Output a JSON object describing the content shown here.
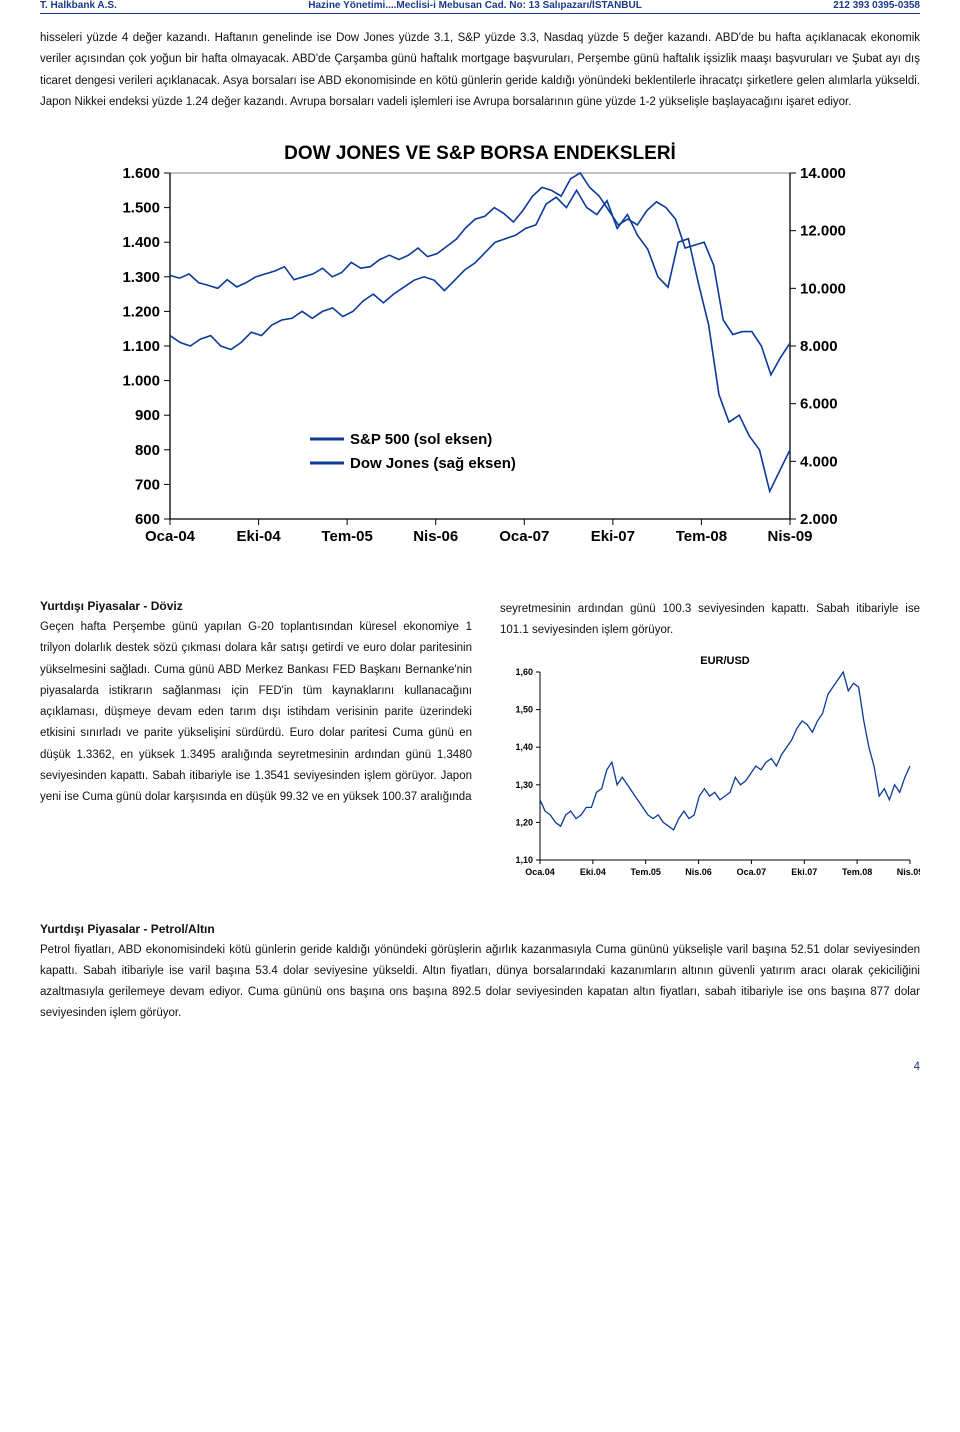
{
  "header": {
    "left": "T. Halkbank A.S.",
    "center": "Hazine Yönetimi....Meclisi-i Mebusan Cad. No: 13 Salıpazarı/İSTANBUL",
    "right": "212 393 0395-0358"
  },
  "paragraph1": "hisseleri yüzde 4 değer kazandı. Haftanın genelinde ise Dow Jones yüzde 3.1, S&P yüzde 3.3, Nasdaq yüzde 5 değer kazandı. ABD'de bu hafta açıklanacak ekonomik veriler açısından çok yoğun bir hafta olmayacak. ABD'de Çarşamba günü haftalık mortgage başvuruları, Perşembe günü haftalık işsizlik maaşı başvuruları ve Şubat ayı dış ticaret dengesi verileri açıklanacak. Asya borsaları ise ABD ekonomisinde en kötü günlerin geride kaldığı yönündeki beklentilerle ihracatçı şirketlere gelen alımlarla yükseldi. Japon Nikkei endeksi yüzde 1.24 değer kazandı. Avrupa borsaları vadeli işlemleri ise Avrupa borsalarının güne yüzde 1-2 yükselişle başlayacağını işaret ediyor.",
  "chart1": {
    "title": "DOW JONES VE S&P BORSA ENDEKSLERİ",
    "title_fontsize": 19,
    "title_weight": "bold",
    "title_color": "#000000",
    "background": "#ffffff",
    "border_color": "#808080",
    "axis_color": "#000000",
    "left_axis": {
      "min": 600,
      "max": 1600,
      "step": 100,
      "labels": [
        "1.600",
        "1.500",
        "1.400",
        "1.300",
        "1.200",
        "1.100",
        "1.000",
        "900",
        "800",
        "700",
        "600"
      ]
    },
    "right_axis": {
      "min": 2000,
      "max": 14000,
      "step": 2000,
      "labels": [
        "14.000",
        "12.000",
        "10.000",
        "8.000",
        "6.000",
        "4.000",
        "2.000"
      ]
    },
    "x_labels": [
      "Oca-04",
      "Eki-04",
      "Tem-05",
      "Nis-06",
      "Oca-07",
      "Eki-07",
      "Tem-08",
      "Nis-09"
    ],
    "tick_fontsize": 15,
    "tick_weight": "bold",
    "legend": {
      "items": [
        {
          "label": "S&P 500 (sol eksen)",
          "color": "#0a3a9a"
        },
        {
          "label": "Dow Jones (sağ eksen)",
          "color": "#0a3a9a"
        }
      ],
      "fontsize": 15,
      "weight": "bold"
    },
    "series": {
      "sp500": {
        "color": "#0a3a9a",
        "stroke_width": 1.6,
        "points_left_axis": [
          1130,
          1110,
          1100,
          1120,
          1130,
          1100,
          1090,
          1110,
          1140,
          1130,
          1160,
          1175,
          1180,
          1200,
          1180,
          1200,
          1210,
          1185,
          1200,
          1230,
          1250,
          1225,
          1250,
          1270,
          1290,
          1300,
          1290,
          1260,
          1290,
          1320,
          1340,
          1370,
          1400,
          1410,
          1420,
          1440,
          1450,
          1510,
          1530,
          1500,
          1550,
          1500,
          1480,
          1520,
          1440,
          1480,
          1420,
          1380,
          1300,
          1270,
          1400,
          1410,
          1280,
          1160,
          960,
          880,
          900,
          840,
          800,
          680,
          740,
          800
        ]
      },
      "dowjones": {
        "color": "#0a3a9a",
        "stroke_width": 1.6,
        "points_right_axis": [
          10450,
          10350,
          10500,
          10200,
          10100,
          10000,
          10300,
          10050,
          10200,
          10400,
          10500,
          10600,
          10750,
          10300,
          10400,
          10500,
          10700,
          10400,
          10550,
          10900,
          10700,
          10750,
          11000,
          11150,
          11000,
          11150,
          11400,
          11100,
          11200,
          11450,
          11700,
          12100,
          12400,
          12500,
          12800,
          12600,
          12300,
          12700,
          13200,
          13500,
          13400,
          13200,
          13800,
          14000,
          13500,
          13200,
          12700,
          12200,
          12400,
          12200,
          12700,
          13000,
          12800,
          12400,
          11400,
          11500,
          11600,
          10800,
          8900,
          8400,
          8500,
          8500,
          8000,
          7000,
          7600,
          8100
        ]
      }
    }
  },
  "section2_title": "Yurtdışı Piyasalar - Döviz",
  "paragraph2_left": "Geçen hafta Perşembe günü yapılan G-20 toplantısından küresel ekonomiye 1 trilyon dolarlık destek sözü çıkması dolara kâr satışı getirdi ve euro dolar paritesinin yükselmesini sağladı. Cuma günü ABD Merkez Bankası FED Başkanı Bernanke'nin piyasalarda istikrarın sağlanması için FED'in tüm kaynaklarını kullanacağını açıklaması, düşmeye devam eden tarım dışı istihdam verisinin parite üzerindeki etkisini sınırladı ve parite yükselişini sürdürdü. Euro dolar paritesi Cuma günü en düşük 1.3362, en yüksek 1.3495 aralığında seyretmesinin ardından günü 1.3480 seviyesinden kapattı. Sabah itibariyle ise 1.3541 seviyesinden işlem görüyor. Japon yeni ise Cuma günü dolar karşısında en düşük 99.32 ve en yüksek 100.37 aralığında",
  "paragraph2_right": "seyretmesinin ardından günü 100.3 seviyesinden kapattı. Sabah itibariyle ise 101.1 seviyesinden işlem görüyor.",
  "chart2": {
    "title": "EUR/USD",
    "title_fontsize": 11,
    "title_weight": "bold",
    "title_color": "#000000",
    "background": "#ffffff",
    "axis_color": "#000000",
    "y_axis": {
      "min": 1.1,
      "max": 1.6,
      "step": 0.1,
      "labels": [
        "1,60",
        "1,50",
        "1,40",
        "1,30",
        "1,20",
        "1,10"
      ]
    },
    "x_labels": [
      "Oca.04",
      "Eki.04",
      "Tem.05",
      "Nis.06",
      "Oca.07",
      "Eki.07",
      "Tem.08",
      "Nis.09"
    ],
    "tick_fontsize": 9,
    "tick_weight": "bold",
    "series": {
      "eurusd": {
        "color": "#0a3a9a",
        "stroke_width": 1.3,
        "points": [
          1.26,
          1.23,
          1.22,
          1.2,
          1.19,
          1.22,
          1.23,
          1.21,
          1.22,
          1.24,
          1.24,
          1.28,
          1.29,
          1.34,
          1.36,
          1.3,
          1.32,
          1.3,
          1.28,
          1.26,
          1.24,
          1.22,
          1.21,
          1.22,
          1.2,
          1.19,
          1.18,
          1.21,
          1.23,
          1.21,
          1.22,
          1.27,
          1.29,
          1.27,
          1.28,
          1.26,
          1.27,
          1.28,
          1.32,
          1.3,
          1.31,
          1.33,
          1.35,
          1.34,
          1.36,
          1.37,
          1.35,
          1.38,
          1.4,
          1.42,
          1.45,
          1.47,
          1.46,
          1.44,
          1.47,
          1.49,
          1.54,
          1.56,
          1.58,
          1.6,
          1.55,
          1.57,
          1.56,
          1.47,
          1.4,
          1.35,
          1.27,
          1.29,
          1.26,
          1.3,
          1.28,
          1.32,
          1.35
        ]
      }
    }
  },
  "section3_title": "Yurtdışı Piyasalar - Petrol/Altın",
  "paragraph3": "Petrol fiyatları, ABD ekonomisindeki kötü günlerin geride kaldığı yönündeki görüşlerin ağırlık kazanmasıyla Cuma gününü yükselişle varil başına 52.51 dolar seviyesinden kapattı. Sabah itibariyle ise varil başına 53.4 dolar seviyesine yükseldi. Altın fiyatları, dünya borsalarındaki kazanımların altının güvenli yatırım aracı olarak çekiciliğini azaltmasıyla gerilemeye devam ediyor. Cuma gününü ons başına ons başına 892.5 dolar seviyesinden kapatan altın fiyatları, sabah itibariyle ise ons başına 877 dolar seviyesinden işlem görüyor.",
  "page_number": "4"
}
